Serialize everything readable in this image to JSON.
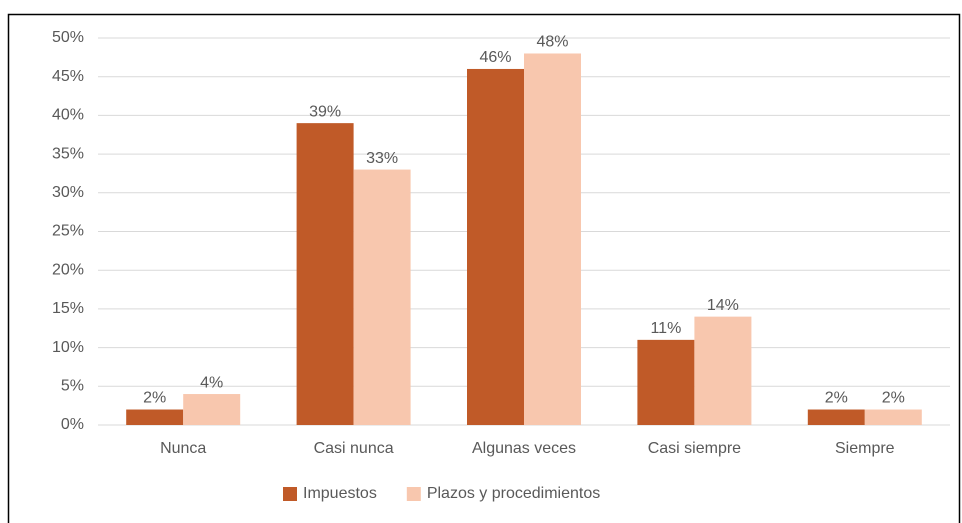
{
  "chart_data": {
    "type": "bar",
    "categories": [
      "Nunca",
      "Casi nunca",
      "Algunas veces",
      "Casi siempre",
      "Siempre"
    ],
    "series": [
      {
        "name": "Impuestos",
        "color": "#c05a28",
        "values": [
          2,
          39,
          46,
          11,
          2
        ],
        "value_labels": [
          "2%",
          "39%",
          "46%",
          "11%",
          "2%"
        ]
      },
      {
        "name": "Plazos y procedimientos",
        "color": "#f8c7ae",
        "values": [
          4,
          33,
          48,
          14,
          2
        ],
        "value_labels": [
          "4%",
          "33%",
          "48%",
          "14%",
          "2%"
        ]
      }
    ],
    "ylim": [
      0,
      50
    ],
    "yticks": [
      {
        "value": 0,
        "label": "0%"
      },
      {
        "value": 5,
        "label": "5%"
      },
      {
        "value": 10,
        "label": "10%"
      },
      {
        "value": 15,
        "label": "15%"
      },
      {
        "value": 20,
        "label": "20%"
      },
      {
        "value": 25,
        "label": "25%"
      },
      {
        "value": 30,
        "label": "30%"
      },
      {
        "value": 35,
        "label": "35%"
      },
      {
        "value": 40,
        "label": "40%"
      },
      {
        "value": 45,
        "label": "45%"
      },
      {
        "value": 50,
        "label": "50%"
      }
    ],
    "grid": true,
    "legend": "bottom"
  }
}
